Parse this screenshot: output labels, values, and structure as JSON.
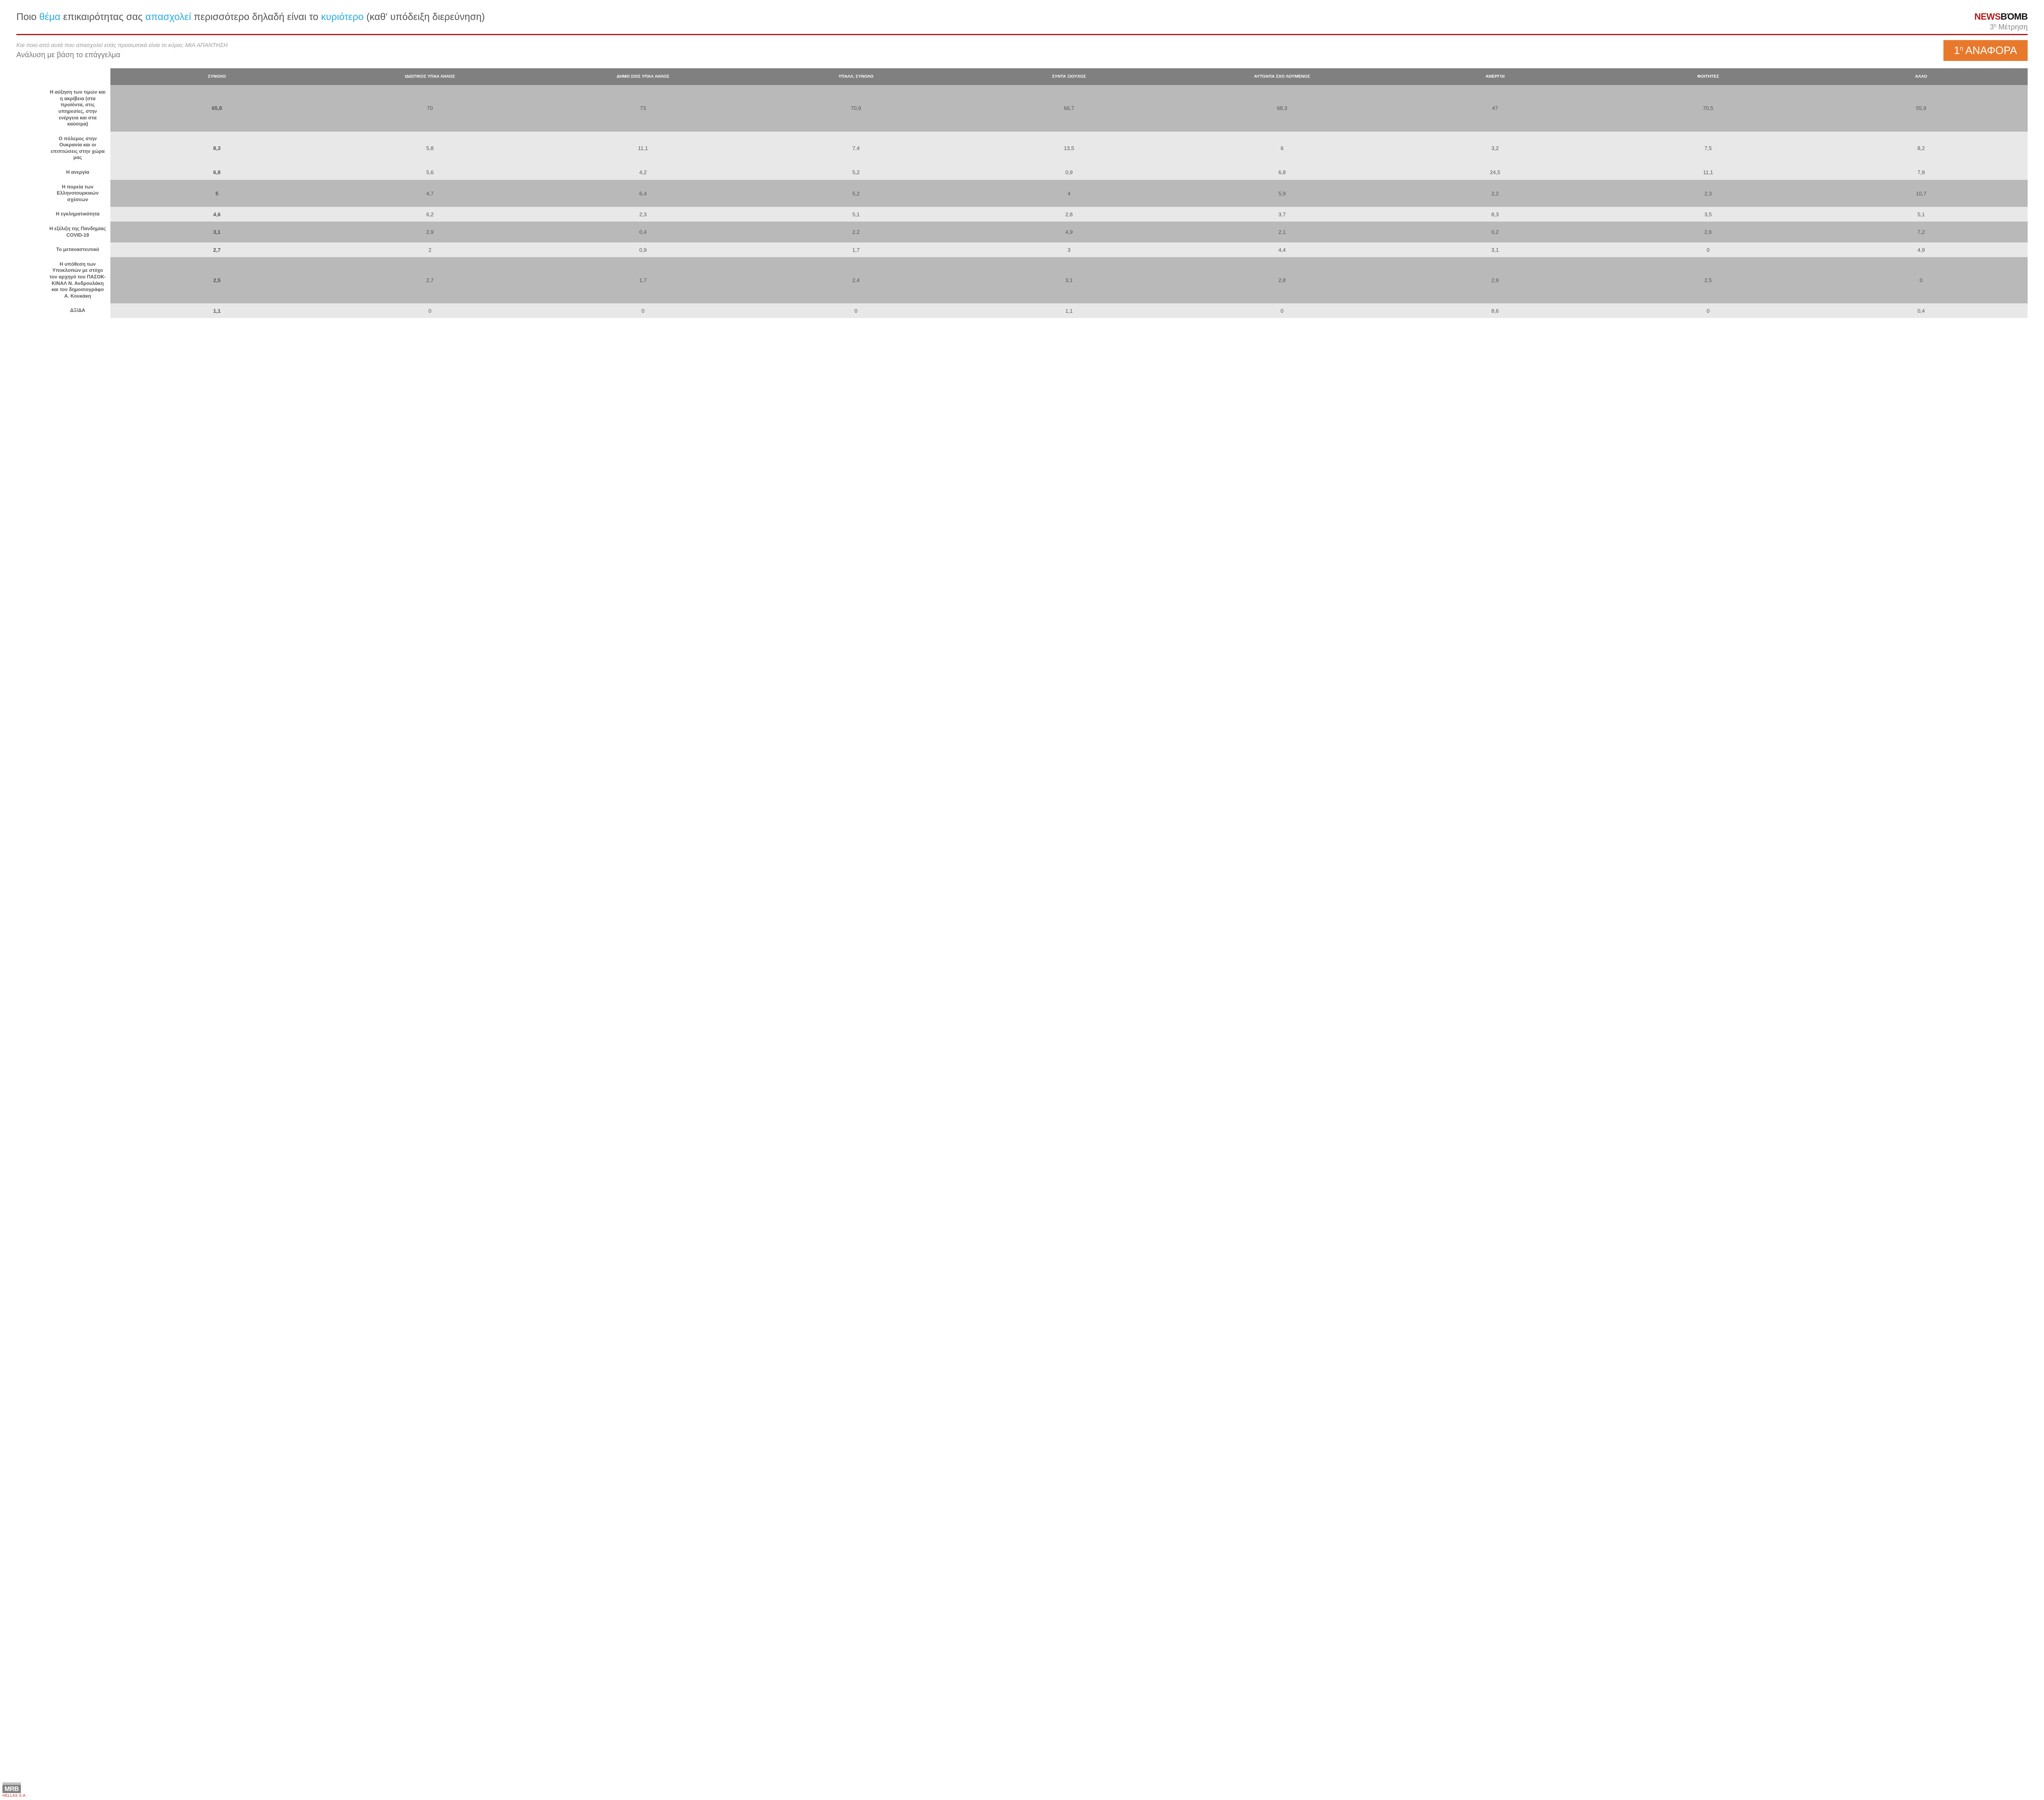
{
  "colors": {
    "accent_blue": "#29abe2",
    "accent_red": "#b01a1a",
    "badge_orange": "#e8792c",
    "header_gray": "#808080",
    "row_dark": "#b9b9b9",
    "row_light": "#e8e8e8",
    "text_gray": "#555555",
    "text_light_gray": "#888888"
  },
  "header": {
    "title_parts": {
      "p1": "Ποιο ",
      "hl1": "θέμα",
      "p2": " επικαιρότητας σας ",
      "hl2": "απασχολεί",
      "p3": " περισσότερο δηλαδή είναι το ",
      "hl3": "κυριότερο",
      "p4": " (καθ' υπόδειξη διερεύνηση)"
    },
    "brand_news": "NEWS",
    "brand_bomb": "BΌMB",
    "brand_sub_num": "3",
    "brand_sub_sup": "η",
    "brand_sub_word": " Μέτρηση"
  },
  "sub": {
    "question_note": "Και ποιο  από αυτά που απασχολεί εσάς προσωπικά είναι το κύριο;    ",
    "question_caps": "ΜΙΑ ΑΠΑΝΤΗΣΗ",
    "analysis": "Ανάλυση με βάση το επάγγελμα",
    "badge_num": "1",
    "badge_sup": "η",
    "badge_word": " ΑΝΑΦΟΡΑ"
  },
  "table": {
    "columns": [
      "",
      "ΣΥΝΟΛΟ",
      "ΙΔΙΩΤΙΚΟΣ ΥΠΑΛ ΛΗΛΟΣ",
      "ΔΗΜΟ ΣΙΟΣ ΥΠΑΛ ΛΗΛΟΣ",
      "ΥΠΑΛΛ. ΣΥΝΟΛΟ",
      "ΣΥΝΤΑ ΞΙΟΥΧΟΣ",
      "ΑΥΤΟΑΠΑ ΣΧΟ ΛΟΥΜΕΝΟΣ",
      "ΑΝΕΡΓΟΙ",
      "ΦΟΙΤΗΤΕΣ",
      "ΑΛΛΟ"
    ],
    "rows": [
      {
        "label": "Η αύξηση των τιμών και η ακρίβεια (στα προϊόντα, στις υπηρεσίες, στην ενέργεια και στα καύσιμα)",
        "cells": [
          "65,8",
          "70",
          "73",
          "70,9",
          "66,7",
          "68,3",
          "47",
          "70,5",
          "55,9"
        ],
        "shade": "dark"
      },
      {
        "label": "Ο πόλεμος στην Ουκρανία και οι επιπτώσεις στην χώρα μας",
        "cells": [
          "8,3",
          "5,8",
          "11,1",
          "7,4",
          "13,5",
          "6",
          "3,2",
          "7,5",
          "8,2"
        ],
        "shade": "light"
      },
      {
        "label": "Η ανεργία",
        "cells": [
          "6,8",
          "5,6",
          "4,2",
          "5,2",
          "0,9",
          "6,8",
          "24,5",
          "11,1",
          "7,8"
        ],
        "shade": "light"
      },
      {
        "label": "Η πορεία των Ελληνοτουρκικών σχέσεων",
        "cells": [
          "5",
          "4,7",
          "6,4",
          "5,2",
          "4",
          "5,9",
          "2,2",
          "2,3",
          "10,7"
        ],
        "shade": "dark"
      },
      {
        "label": "Η εγκληματικότητα",
        "cells": [
          "4,6",
          "6,2",
          "2,3",
          "5,1",
          "2,8",
          "3,7",
          "8,3",
          "3,5",
          "5,1"
        ],
        "shade": "light"
      },
      {
        "label": "Η εξέλιξη της Πανδημίας COVID-19",
        "cells": [
          "3,1",
          "2,9",
          "0,4",
          "2,2",
          "4,9",
          "2,1",
          "0,2",
          "2,6",
          "7,2"
        ],
        "shade": "dark"
      },
      {
        "label": "Το μεταναστευτικό",
        "cells": [
          "2,7",
          "2",
          "0,9",
          "1,7",
          "3",
          "4,4",
          "3,1",
          "0",
          "4,9"
        ],
        "shade": "light"
      },
      {
        "label": "Η υπόθεση των Υποκλοπών με στόχο τον αρχηγό του ΠΑΣΟΚ-ΚΙΝΑΛ Ν. Ανδρουλάκη και τον δημοσιογράφο Α. Κουκάκη",
        "cells": [
          "2,5",
          "2,7",
          "1,7",
          "2,4",
          "3,1",
          "2,8",
          "2,9",
          "2,5",
          "0"
        ],
        "shade": "dark"
      },
      {
        "label": "ΔΞ/ΔΑ",
        "cells": [
          "1,1",
          "0",
          "0",
          "0",
          "1,1",
          "0",
          "8,6",
          "0",
          "0,4"
        ],
        "shade": "light"
      }
    ]
  },
  "footer": {
    "mrb": "MRB",
    "hellas": "HELLAS S.A."
  }
}
